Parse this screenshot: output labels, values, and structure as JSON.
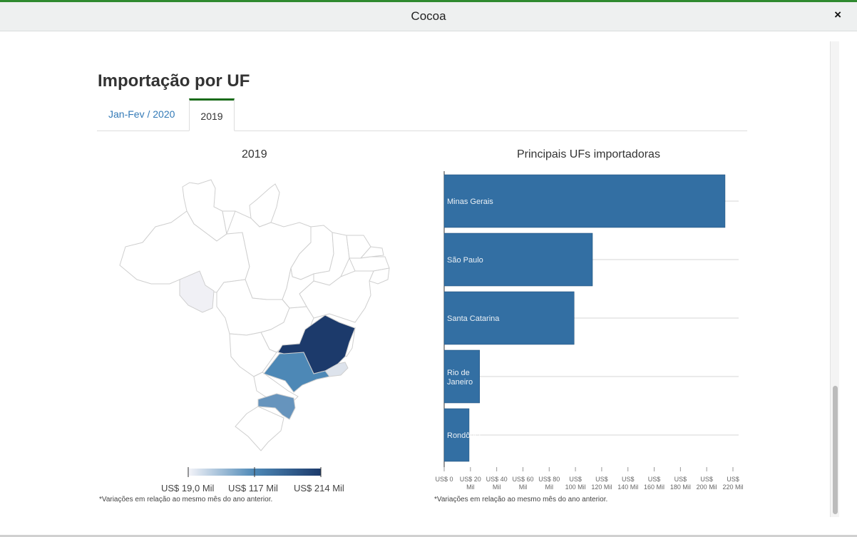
{
  "modal": {
    "title": "Cocoa",
    "close_symbol": "×"
  },
  "section": {
    "title": "Importação por UF"
  },
  "tabs": [
    {
      "label": "Jan-Fev / 2020"
    },
    {
      "label": "2019"
    }
  ],
  "map_panel": {
    "title": "2019",
    "legend": {
      "min": "US$ 19,0 Mil",
      "mid": "US$ 117 Mil",
      "max": "US$ 214 Mil"
    },
    "note": "*Variações em relação ao mesmo mês do ano anterior."
  },
  "colors": {
    "accent": "#1a6b1a",
    "bar": "#336fa3",
    "dark": "#1c3a6b",
    "light_state": "#f0f0f5"
  },
  "chart_data": {
    "type": "bar",
    "orientation": "horizontal",
    "title": "Principais UFs importadoras",
    "categories": [
      "Minas Gerais",
      "São Paulo",
      "Santa Catarina",
      "Rio de Janeiro",
      "Rondônia"
    ],
    "values": [
      214,
      113,
      99,
      27,
      19
    ],
    "unit": "US$ Mil",
    "xlim": [
      0,
      220
    ],
    "ticks": [
      {
        "value": 0,
        "l1": "US$ 0",
        "l2": ""
      },
      {
        "value": 20,
        "l1": "US$ 20",
        "l2": "Mil"
      },
      {
        "value": 40,
        "l1": "US$ 40",
        "l2": "Mil"
      },
      {
        "value": 60,
        "l1": "US$ 60",
        "l2": "Mil"
      },
      {
        "value": 80,
        "l1": "US$ 80",
        "l2": "Mil"
      },
      {
        "value": 100,
        "l1": "US$",
        "l2": "100 Mil"
      },
      {
        "value": 120,
        "l1": "US$",
        "l2": "120 Mil"
      },
      {
        "value": 140,
        "l1": "US$",
        "l2": "140 Mil"
      },
      {
        "value": 160,
        "l1": "US$",
        "l2": "160 Mil"
      },
      {
        "value": 180,
        "l1": "US$",
        "l2": "180 Mil"
      },
      {
        "value": 200,
        "l1": "US$",
        "l2": "200 Mil"
      },
      {
        "value": 220,
        "l1": "US$",
        "l2": "220 Mil"
      }
    ],
    "note": "*Variações em relação ao mesmo mês do ano anterior."
  }
}
